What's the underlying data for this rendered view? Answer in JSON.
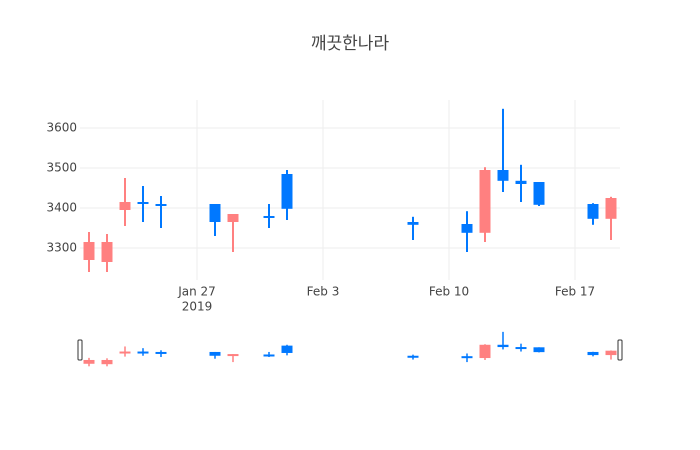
{
  "chart_data": {
    "type": "candlestick",
    "title": "깨끗한나라",
    "x": [
      "2019-01-21",
      "2019-01-22",
      "2019-01-23",
      "2019-01-24",
      "2019-01-25",
      "2019-01-28",
      "2019-01-29",
      "2019-01-31",
      "2019-02-01",
      "2019-02-08",
      "2019-02-11",
      "2019-02-12",
      "2019-02-13",
      "2019-02-14",
      "2019-02-15",
      "2019-02-18",
      "2019-02-19"
    ],
    "open": [
      3270,
      3265,
      3395,
      3415,
      3410,
      3410,
      3365,
      3380,
      3485,
      3365,
      3360,
      3338,
      3495,
      3468,
      3465,
      3410,
      3373
    ],
    "high": [
      3340,
      3335,
      3475,
      3455,
      3430,
      3410,
      3385,
      3410,
      3495,
      3378,
      3392,
      3502,
      3648,
      3508,
      3465,
      3412,
      3428
    ],
    "low": [
      3240,
      3240,
      3355,
      3365,
      3350,
      3330,
      3290,
      3350,
      3370,
      3320,
      3290,
      3315,
      3440,
      3415,
      3405,
      3358,
      3320
    ],
    "close": [
      3315,
      3315,
      3415,
      3410,
      3405,
      3365,
      3385,
      3375,
      3398,
      3358,
      3338,
      3495,
      3468,
      3460,
      3408,
      3373,
      3425
    ],
    "increasing_color": "#ff8080",
    "decreasing_color": "#0078ff",
    "xlim": [
      "2019-01-20T12:00",
      "2019-02-19T12:00"
    ],
    "xticks": [
      {
        "value": "2019-01-27",
        "label": "Jan 27"
      },
      {
        "value": "2019-02-03",
        "label": "Feb 3"
      },
      {
        "value": "2019-02-10",
        "label": "Feb 10"
      },
      {
        "value": "2019-02-17",
        "label": "Feb 17"
      }
    ],
    "xtick_year": "2019",
    "ylim": [
      3220,
      3670
    ],
    "yticks": [
      3300,
      3400,
      3500,
      3600
    ],
    "grid": true,
    "rangeslider": true
  }
}
